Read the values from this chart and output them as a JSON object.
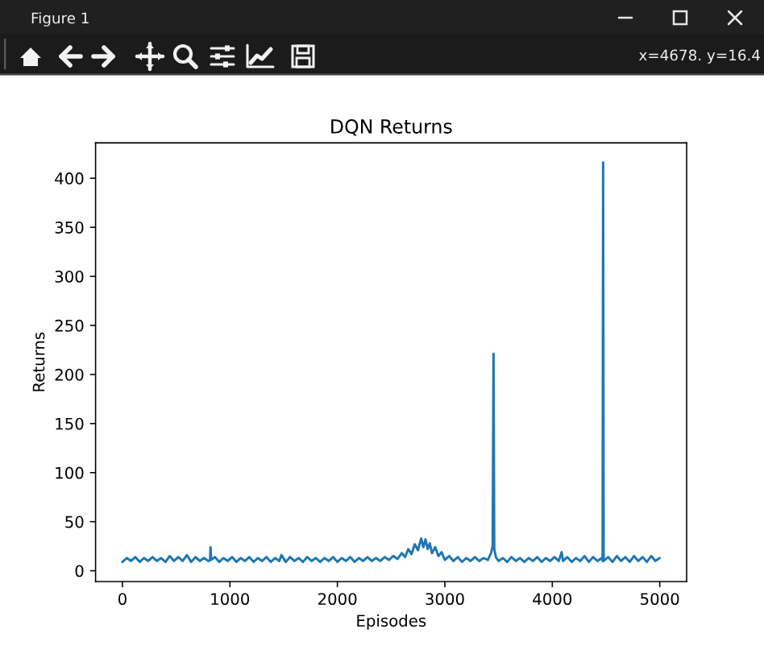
{
  "chart_data": {
    "type": "line",
    "title": "DQN Returns",
    "xlabel": "Episodes",
    "ylabel": "Returns",
    "annotations": [
      "Figure 1",
      "x=4678. y=16.4"
    ],
    "x": [
      0,
      40,
      80,
      120,
      160,
      200,
      240,
      280,
      320,
      360,
      400,
      440,
      480,
      520,
      560,
      600,
      640,
      680,
      720,
      760,
      800,
      815,
      820,
      825,
      860,
      900,
      940,
      980,
      1020,
      1060,
      1100,
      1140,
      1180,
      1220,
      1260,
      1300,
      1340,
      1380,
      1420,
      1460,
      1480,
      1520,
      1560,
      1600,
      1640,
      1680,
      1720,
      1760,
      1800,
      1840,
      1880,
      1920,
      1960,
      2000,
      2040,
      2080,
      2120,
      2160,
      2200,
      2240,
      2280,
      2320,
      2360,
      2400,
      2440,
      2480,
      2520,
      2560,
      2600,
      2630,
      2660,
      2690,
      2720,
      2750,
      2780,
      2800,
      2820,
      2840,
      2860,
      2880,
      2910,
      2940,
      2970,
      3000,
      3040,
      3080,
      3120,
      3160,
      3200,
      3240,
      3280,
      3320,
      3360,
      3400,
      3430,
      3445,
      3453,
      3460,
      3475,
      3500,
      3540,
      3580,
      3620,
      3660,
      3700,
      3740,
      3780,
      3820,
      3860,
      3900,
      3940,
      3980,
      4020,
      4060,
      4087,
      4100,
      4140,
      4180,
      4220,
      4260,
      4300,
      4340,
      4380,
      4420,
      4460,
      4468,
      4473,
      4478,
      4520,
      4560,
      4600,
      4640,
      4680,
      4720,
      4760,
      4800,
      4840,
      4880,
      4920,
      4960,
      4999
    ],
    "series": [
      {
        "color": "#1f77b4",
        "values": [
          9,
          13,
          10,
          14,
          9,
          13,
          10,
          14,
          10,
          13,
          9,
          15,
          10,
          14,
          10,
          16,
          9,
          14,
          10,
          13,
          10,
          11,
          24,
          11,
          14,
          9,
          13,
          10,
          14,
          9,
          13,
          10,
          14,
          9,
          13,
          10,
          14,
          9,
          13,
          10,
          16,
          9,
          14,
          10,
          13,
          9,
          14,
          10,
          13,
          9,
          13,
          10,
          14,
          9,
          13,
          10,
          14,
          9,
          13,
          10,
          14,
          10,
          13,
          10,
          14,
          11,
          15,
          12,
          18,
          14,
          22,
          17,
          27,
          21,
          33,
          24,
          32,
          22,
          28,
          18,
          24,
          15,
          19,
          11,
          15,
          10,
          14,
          9,
          13,
          10,
          14,
          10,
          13,
          11,
          18,
          25,
          221,
          22,
          14,
          10,
          13,
          9,
          14,
          10,
          13,
          9,
          13,
          10,
          14,
          9,
          13,
          10,
          14,
          10,
          19,
          10,
          14,
          9,
          13,
          10,
          15,
          9,
          14,
          10,
          13,
          10,
          416,
          10,
          14,
          9,
          15,
          10,
          14,
          9,
          15,
          10,
          14,
          9,
          15,
          10,
          13
        ]
      }
    ],
    "xlim": [
      -250,
      5250
    ],
    "ylim": [
      -11,
      436
    ],
    "xticks": [
      0,
      1000,
      2000,
      3000,
      4000,
      5000
    ],
    "yticks": [
      0,
      50,
      100,
      150,
      200,
      250,
      300,
      350,
      400
    ]
  }
}
